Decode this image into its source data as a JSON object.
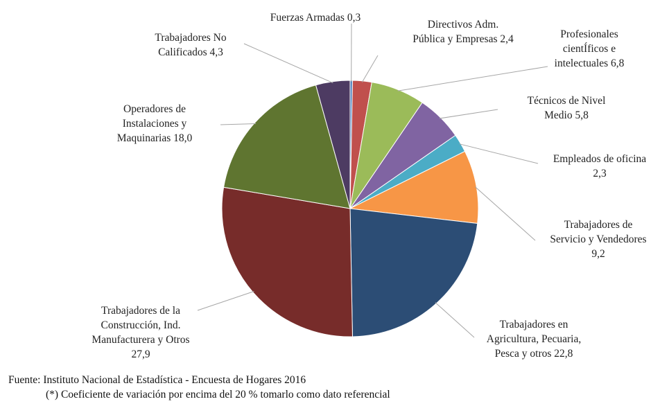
{
  "chart_data": {
    "type": "pie",
    "title": "",
    "slices": [
      {
        "label": [
          "Fuerzas Armadas 0,3"
        ],
        "value": 0.3,
        "color": "#4f81bd"
      },
      {
        "label": [
          "Directivos Adm.",
          "Pública y Empresas 2,4"
        ],
        "value": 2.4,
        "color": "#c0504d"
      },
      {
        "label": [
          "Profesionales",
          "cientÍficos e",
          "intelectuales 6,8"
        ],
        "value": 6.8,
        "color": "#9bbb59"
      },
      {
        "label": [
          "Técnicos de Nivel",
          "Medio 5,8"
        ],
        "value": 5.8,
        "color": "#8064a2"
      },
      {
        "label": [
          "Empleados de oficina",
          "2,3"
        ],
        "value": 2.3,
        "color": "#4bacc6"
      },
      {
        "label": [
          "Trabajadores de",
          "Servicio y Vendedores",
          "9,2"
        ],
        "value": 9.2,
        "color": "#f79646"
      },
      {
        "label": [
          "Trabajadores en",
          "Agricultura,  Pecuaria,",
          "Pesca y otros 22,8"
        ],
        "value": 22.8,
        "color": "#2c4d75"
      },
      {
        "label": [
          "Trabajadores de la",
          "Construcción, Ind.",
          "Manufacturera y Otros",
          "27,9"
        ],
        "value": 27.9,
        "color": "#772c2a"
      },
      {
        "label": [
          "Operadores de",
          "Instalaciones y",
          "Maquinarias 18,0"
        ],
        "value": 18.0,
        "color": "#5f7530"
      },
      {
        "label": [
          "Trabajadores No",
          "Calificados 4,3"
        ],
        "value": 4.3,
        "color": "#4d3b62"
      }
    ]
  },
  "footer": {
    "source": "Fuente: Instituto Nacional de Estadística - Encuesta de Hogares 2016",
    "note": "(*) Coeficiente de variación por encima del 20 % tomarlo como dato referencial"
  }
}
